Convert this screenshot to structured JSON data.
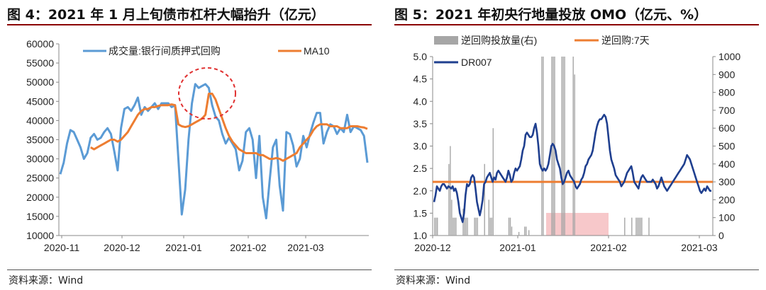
{
  "figure_left": {
    "title": "图 4：2021 年 1 月上旬债市杠杆大幅抬升（亿元）",
    "source": "资料来源：Wind",
    "legend": [
      "成交量:银行间质押式回购",
      "MA10"
    ],
    "colors": {
      "volume": "#5b9bd5",
      "ma10": "#ed7d31",
      "annotation": "#e03030"
    }
  },
  "figure_right": {
    "title": "图 5：2021 年初央行地量投放 OMO（亿元、%）",
    "source": "资料来源：Wind",
    "legend": [
      "逆回购投放量(右)",
      "逆回购:7天",
      "DR007"
    ],
    "colors": {
      "bars": "#a6a6a6",
      "repo7d": "#ed7d31",
      "dr007": "#1f3f8f",
      "highlight": "#f4b6b8"
    }
  },
  "chart_data": [
    {
      "type": "line",
      "x_ticks": [
        "2020-11",
        "2020-12",
        "2021-01",
        "2021-02",
        "2021-03"
      ],
      "ylim": [
        10000,
        60000
      ],
      "y_ticks": [
        10000,
        15000,
        20000,
        25000,
        30000,
        35000,
        40000,
        45000,
        50000,
        55000,
        60000
      ],
      "grid": false,
      "legend_position": "top",
      "series": [
        {
          "name": "成交量:银行间质押式回购",
          "values": [
            26000,
            29000,
            34000,
            37500,
            37000,
            35000,
            33000,
            30000,
            31500,
            35500,
            36500,
            35000,
            35500,
            37000,
            38000,
            36500,
            32000,
            27000,
            38000,
            43000,
            43500,
            42500,
            44000,
            46000,
            41500,
            43500,
            42500,
            43500,
            44500,
            43000,
            44500,
            44500,
            44500,
            43500,
            44000,
            30000,
            15500,
            22000,
            35000,
            44500,
            49500,
            48500,
            49000,
            49500,
            48500,
            44000,
            41000,
            40000,
            36500,
            34000,
            35500,
            34000,
            32500,
            27000,
            29500,
            37000,
            38000,
            35000,
            25000,
            36000,
            20000,
            14500,
            24000,
            33000,
            35000,
            23000,
            16500,
            37000,
            36500,
            33500,
            28000,
            30000,
            36000,
            33000,
            36500,
            39500,
            42000,
            42000,
            34000,
            37000,
            39000,
            38500,
            36500,
            38000,
            37000,
            41500,
            37000,
            38500,
            38000,
            37500,
            36000,
            29000
          ]
        },
        {
          "name": "MA10",
          "values": [
            null,
            null,
            null,
            null,
            null,
            null,
            null,
            null,
            null,
            33000,
            32500,
            33000,
            33500,
            34000,
            34500,
            35000,
            35000,
            34500,
            35000,
            36000,
            37000,
            38500,
            40000,
            41500,
            42500,
            43000,
            43000,
            43500,
            43500,
            43800,
            44000,
            44000,
            44000,
            44200,
            44000,
            39000,
            38500,
            38300,
            38500,
            39000,
            39500,
            40000,
            40500,
            41500,
            47000,
            47000,
            45500,
            43000,
            40500,
            38000,
            36000,
            34500,
            33500,
            32500,
            32000,
            31500,
            31500,
            31500,
            31500,
            31000,
            31000,
            30500,
            30000,
            30000,
            30200,
            30000,
            29500,
            30000,
            30500,
            31000,
            31500,
            33000,
            34000,
            35000,
            36000,
            37500,
            38500,
            39000,
            39000,
            39000,
            38500,
            38500,
            38500,
            38000,
            38000,
            38000,
            38500,
            38500,
            38500,
            38300,
            38200,
            37800
          ]
        }
      ]
    },
    {
      "type": "bar",
      "x_ticks": [
        "2020-12",
        "2021-01",
        "2021-02",
        "2021-03"
      ],
      "y_left": {
        "range": [
          1.0,
          5.0
        ],
        "ticks": [
          1.0,
          1.5,
          2.0,
          2.5,
          3.0,
          3.5,
          4.0,
          4.5,
          5.0
        ]
      },
      "y_right": {
        "range": [
          0,
          1000
        ],
        "ticks": [
          0,
          100,
          200,
          300,
          400,
          500,
          600,
          700,
          800,
          900,
          1000
        ]
      },
      "grid": false,
      "legend_position": "top",
      "series": [
        {
          "name": "逆回购投放量(右)",
          "axis": "right",
          "kind": "bar",
          "values": [
            100,
            100,
            100,
            0,
            0,
            0,
            0,
            0,
            0,
            0,
            400,
            500,
            200,
            100,
            100,
            100,
            0,
            0,
            0,
            0,
            150,
            100,
            100,
            100,
            0,
            0,
            0,
            0,
            100,
            100,
            100,
            0,
            0,
            0,
            0,
            400,
            0,
            0,
            200,
            100,
            100,
            600,
            0,
            0,
            0,
            0,
            0,
            0,
            0,
            0,
            0,
            0,
            100,
            100,
            50,
            0,
            0,
            0,
            0,
            20,
            0,
            0,
            0,
            50,
            50,
            0,
            30,
            0,
            0,
            0,
            0,
            0,
            0,
            0,
            0,
            1000,
            1000,
            0,
            0,
            0,
            0,
            0,
            1000,
            1000,
            1000,
            0,
            0,
            0,
            0,
            1000,
            1000,
            1000,
            0,
            0,
            0,
            0,
            0,
            1000,
            900,
            0,
            0,
            0,
            0,
            0,
            0,
            0,
            0,
            0,
            0,
            0,
            0,
            0,
            0,
            0,
            0,
            0,
            0,
            0,
            0,
            0,
            0,
            0,
            0,
            0,
            0,
            0,
            0,
            0,
            0,
            0,
            0,
            0,
            0,
            100,
            0,
            0,
            0,
            0,
            100,
            0,
            0,
            100,
            100,
            100,
            100,
            100,
            0,
            0,
            0,
            0,
            100,
            0,
            0,
            0,
            0,
            0,
            0,
            0,
            0,
            0,
            0,
            0,
            0,
            0,
            0,
            0,
            0,
            0,
            0,
            0,
            0,
            0,
            0,
            0,
            0,
            0,
            0,
            0,
            0,
            0,
            0,
            0,
            0,
            0,
            0,
            0,
            0,
            0,
            0,
            0,
            0,
            0,
            0,
            0
          ]
        },
        {
          "name": "逆回购:7天",
          "axis": "left",
          "kind": "line",
          "values": [
            2.2
          ]
        },
        {
          "name": "DR007",
          "axis": "left",
          "kind": "line",
          "values": [
            1.75,
            1.9,
            2.1,
            2.05,
            2.0,
            2.1,
            2.15,
            2.15,
            2.1,
            2.05,
            2.1,
            2.08,
            2.05,
            2.1,
            2.0,
            2.05,
            1.95,
            1.75,
            1.5,
            1.4,
            1.3,
            1.5,
            1.9,
            2.15,
            2.1,
            2.15,
            2.3,
            2.35,
            2.3,
            2.05,
            1.75,
            1.6,
            1.45,
            1.6,
            1.8,
            2.15,
            2.2,
            2.3,
            2.35,
            2.4,
            2.3,
            2.2,
            2.3,
            2.25,
            2.4,
            2.45,
            2.4,
            2.35,
            2.3,
            2.25,
            2.2,
            2.3,
            2.45,
            2.35,
            2.2,
            2.25,
            2.4,
            2.5,
            2.45,
            2.5,
            2.55,
            2.7,
            2.9,
            3.0,
            3.25,
            3.3,
            3.25,
            3.2,
            3.2,
            3.25,
            3.4,
            3.5,
            3.3,
            3.0,
            2.6,
            2.5,
            2.45,
            2.5,
            2.45,
            2.5,
            2.6,
            2.8,
            3.0,
            3.05,
            3.0,
            2.9,
            2.7,
            2.6,
            2.5,
            2.3,
            2.15,
            2.2,
            2.3,
            2.4,
            2.45,
            2.35,
            2.3,
            2.25,
            2.2,
            2.1,
            2.05,
            2.1,
            2.15,
            2.25,
            2.3,
            2.4,
            2.55,
            2.6,
            2.7,
            2.75,
            2.8,
            2.9,
            3.1,
            3.3,
            3.45,
            3.55,
            3.6,
            3.6,
            3.65,
            3.7,
            3.65,
            3.5,
            3.2,
            2.9,
            2.7,
            2.6,
            2.5,
            2.35,
            2.3,
            2.25,
            2.2,
            2.1,
            2.15,
            2.2,
            2.3,
            2.4,
            2.45,
            2.5,
            2.55,
            2.4,
            2.2,
            2.15,
            2.1,
            2.05,
            2.2,
            2.3,
            2.35,
            2.3,
            2.25,
            2.2,
            2.2,
            2.2,
            2.2,
            2.25,
            2.2,
            2.15,
            2.05,
            2.1,
            2.2,
            2.3,
            2.2,
            2.1,
            2.05,
            2.0,
            2.05,
            2.1,
            2.15,
            2.2,
            2.25,
            2.3,
            2.35,
            2.4,
            2.45,
            2.5,
            2.55,
            2.6,
            2.7,
            2.8,
            2.75,
            2.7,
            2.6,
            2.5,
            2.4,
            2.3,
            2.2,
            2.1,
            2.0,
            1.95,
            2.0,
            2.05,
            2.0,
            2.1,
            2.05,
            2.0,
            2.0
          ]
        }
      ]
    }
  ]
}
